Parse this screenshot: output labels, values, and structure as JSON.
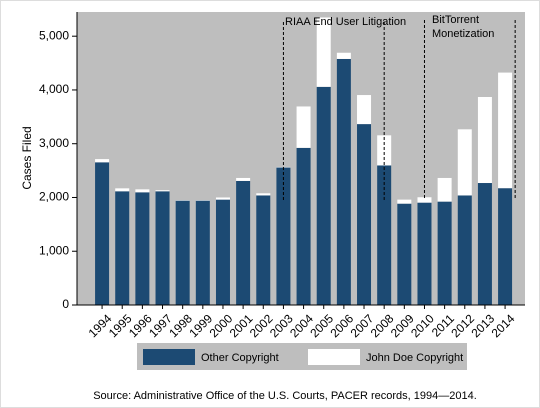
{
  "chart_data": {
    "type": "stacked-bar",
    "y_label": "Cases Filed",
    "categories": [
      "1994",
      "1995",
      "1996",
      "1997",
      "1998",
      "1999",
      "2000",
      "2001",
      "2002",
      "2003",
      "2004",
      "2005",
      "2006",
      "2007",
      "2008",
      "2009",
      "2010",
      "2011",
      "2012",
      "2013",
      "2014"
    ],
    "series": [
      {
        "name": "Other Copyright",
        "color": "#1c4a73",
        "values": [
          2654,
          2115,
          2096,
          2115,
          1942,
          1942,
          1960,
          2308,
          2038,
          2558,
          2923,
          4058,
          4577,
          3365,
          2596,
          1885,
          1904,
          1923,
          2038,
          2269,
          2173
        ]
      },
      {
        "name": "John Doe Copyright",
        "color": "#ffffff",
        "values": [
          60,
          55,
          55,
          20,
          10,
          10,
          40,
          55,
          40,
          10,
          770,
          1290,
          115,
          540,
          560,
          75,
          100,
          440,
          1230,
          1600,
          2150
        ]
      }
    ],
    "ylim": [
      0,
      5450
    ],
    "yticks": [
      0,
      {
        "value": 1000,
        "label": "1,000"
      },
      {
        "value": 2000,
        "label": "2,000"
      },
      {
        "value": 3000,
        "label": "3,000"
      },
      {
        "value": 4000,
        "label": "4,000"
      },
      {
        "value": 5000,
        "label": "5,000"
      }
    ],
    "annotations": [
      {
        "text": [
          "RIAA End User Litigation"
        ]
      },
      {
        "text": [
          "BitTorrent",
          "Monetization"
        ]
      }
    ],
    "source": "Source: Administrative Office of the U.S. Courts, PACER records, 1994—2014."
  }
}
